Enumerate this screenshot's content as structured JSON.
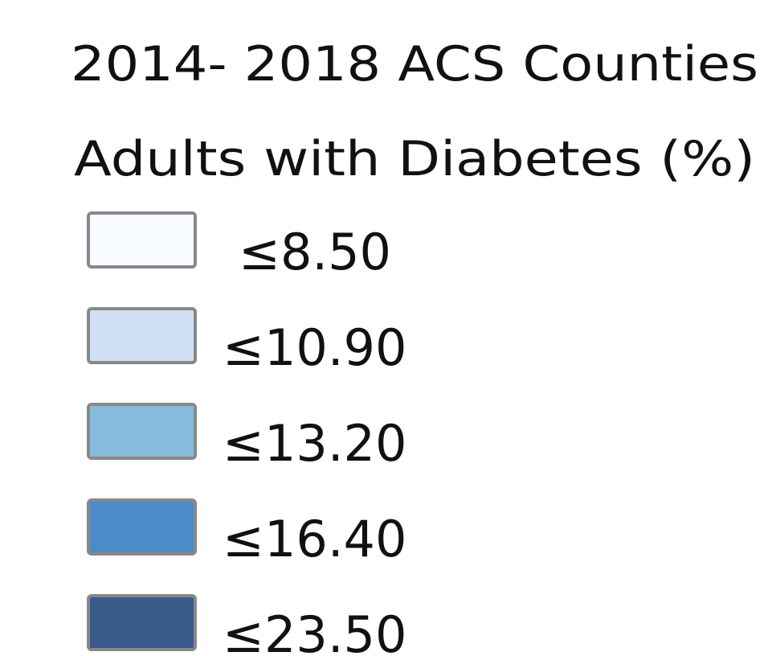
{
  "legend": {
    "title": "2014- 2018 ACS Counties",
    "subtitle": "Adults with Diabetes (%)",
    "items": [
      {
        "label": "≤8.50",
        "color": "#f7fbff"
      },
      {
        "label": "≤10.90",
        "color": "#cfe0f2"
      },
      {
        "label": "≤13.20",
        "color": "#86bbde"
      },
      {
        "label": "≤16.40",
        "color": "#4a8bc8"
      },
      {
        "label": "≤23.50",
        "color": "#3a5a8a"
      }
    ]
  }
}
